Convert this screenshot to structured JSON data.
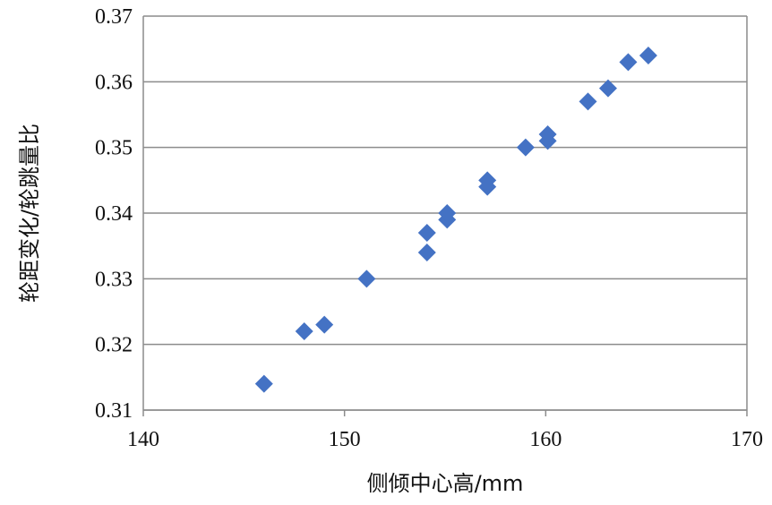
{
  "chart_data": {
    "type": "scatter",
    "xlabel": "侧倾中心高/mm",
    "ylabel": "轮距变化/轮跳量比",
    "xlim": [
      140,
      170
    ],
    "ylim": [
      0.31,
      0.37
    ],
    "xticks": [
      "140",
      "150",
      "160",
      "170"
    ],
    "yticks": [
      "0.31",
      "0.32",
      "0.33",
      "0.34",
      "0.35",
      "0.36",
      "0.37"
    ],
    "grid": "horizontal",
    "legend": "none",
    "marker": "diamond",
    "marker_color": "#4472C4",
    "points": [
      {
        "x": 146.0,
        "y": 0.314
      },
      {
        "x": 148.0,
        "y": 0.322
      },
      {
        "x": 149.0,
        "y": 0.323
      },
      {
        "x": 151.1,
        "y": 0.33
      },
      {
        "x": 154.1,
        "y": 0.334
      },
      {
        "x": 154.1,
        "y": 0.337
      },
      {
        "x": 155.1,
        "y": 0.339
      },
      {
        "x": 155.1,
        "y": 0.34
      },
      {
        "x": 157.1,
        "y": 0.344
      },
      {
        "x": 157.1,
        "y": 0.345
      },
      {
        "x": 159.0,
        "y": 0.35
      },
      {
        "x": 160.1,
        "y": 0.351
      },
      {
        "x": 160.1,
        "y": 0.352
      },
      {
        "x": 162.1,
        "y": 0.357
      },
      {
        "x": 163.1,
        "y": 0.359
      },
      {
        "x": 164.1,
        "y": 0.363
      },
      {
        "x": 165.1,
        "y": 0.364
      }
    ]
  }
}
